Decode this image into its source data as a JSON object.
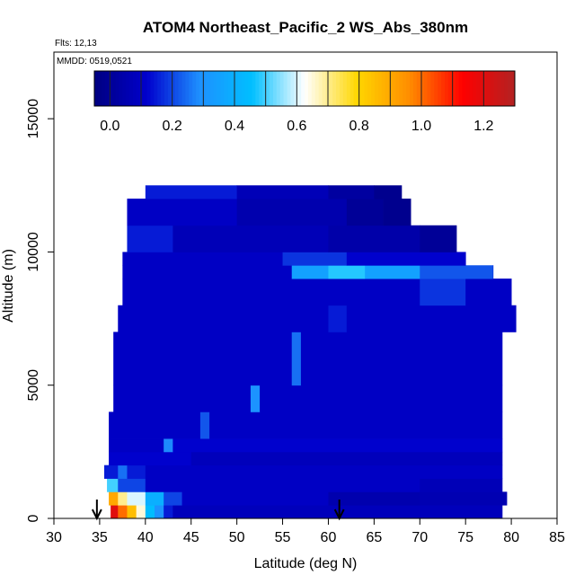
{
  "chart_data": {
    "type": "heatmap",
    "title": "ATOM4 Northeast_Pacific_2 WS_Abs_380nm",
    "notes": [
      "Flts: 12,13",
      "MMDD: 0519,0521"
    ],
    "xlabel": "Latitude (deg N)",
    "ylabel": "Altitude (m)",
    "xlim": [
      30,
      85
    ],
    "ylim": [
      0,
      17500
    ],
    "x_ticks": [
      30,
      35,
      40,
      45,
      50,
      55,
      60,
      65,
      70,
      75,
      80,
      85
    ],
    "y_ticks": [
      0,
      5000,
      10000,
      15000
    ],
    "colorbar": {
      "range": [
        -0.05,
        1.3
      ],
      "ticks": [
        0.0,
        0.2,
        0.4,
        0.6,
        0.8,
        1.0,
        1.2
      ],
      "tick_labels": [
        "0.0",
        "0.2",
        "0.4",
        "0.6",
        "0.8",
        "1.0",
        "1.2"
      ],
      "colors": [
        "#000080",
        "#0000cd",
        "#1e90ff",
        "#00bfff",
        "#ffffff",
        "#ffd700",
        "#ff8c00",
        "#ff0000",
        "#b22222"
      ]
    },
    "arrows_at_latitude": [
      34.7,
      61.2
    ],
    "layers": [
      {
        "alt": [
          0,
          500
        ],
        "lat": [
          36.2,
          79.0
        ],
        "segments": [
          [
            36.2,
            1.2
          ],
          [
            37.0,
            1.0
          ],
          [
            38.0,
            0.85
          ],
          [
            39.0,
            0.65
          ],
          [
            40.0,
            0.45
          ],
          [
            41.0,
            0.3
          ],
          [
            42.0,
            0.15
          ],
          [
            43.0,
            0.08
          ]
        ]
      },
      {
        "alt": [
          500,
          1000
        ],
        "lat": [
          36.0,
          79.5
        ],
        "segments": [
          [
            36.0,
            0.9
          ],
          [
            37.0,
            0.7
          ],
          [
            38.0,
            0.6
          ],
          [
            40.0,
            0.4
          ],
          [
            42.0,
            0.2
          ],
          [
            44.0,
            0.1
          ],
          [
            60.0,
            0.05
          ],
          [
            70.0,
            0.06
          ]
        ]
      },
      {
        "alt": [
          1000,
          1500
        ],
        "lat": [
          35.8,
          79.0
        ],
        "segments": [
          [
            35.8,
            0.5
          ],
          [
            37.0,
            0.2
          ],
          [
            40.0,
            0.1
          ],
          [
            70.0,
            0.07
          ]
        ]
      },
      {
        "alt": [
          1500,
          2000
        ],
        "lat": [
          35.5,
          79.0
        ],
        "segments": [
          [
            35.5,
            0.15
          ],
          [
            37.0,
            0.25
          ],
          [
            38.0,
            0.15
          ],
          [
            40.0,
            0.1
          ]
        ]
      },
      {
        "alt": [
          2000,
          2500
        ],
        "lat": [
          36.0,
          79.0
        ],
        "segments": [
          [
            36.0,
            0.12
          ],
          [
            45.0,
            0.08
          ]
        ]
      },
      {
        "alt": [
          2500,
          3000
        ],
        "lat": [
          36.0,
          79.0
        ],
        "segments": [
          [
            36.0,
            0.1
          ],
          [
            42.0,
            0.28
          ],
          [
            43.0,
            0.12
          ]
        ]
      },
      {
        "alt": [
          3000,
          4000
        ],
        "lat": [
          36.0,
          79.0
        ],
        "segments": [
          [
            36.0,
            0.1
          ],
          [
            46.0,
            0.22
          ],
          [
            47.0,
            0.1
          ]
        ]
      },
      {
        "alt": [
          4000,
          5000
        ],
        "lat": [
          36.5,
          79.0
        ],
        "segments": [
          [
            36.5,
            0.1
          ],
          [
            51.5,
            0.3
          ],
          [
            52.5,
            0.1
          ]
        ]
      },
      {
        "alt": [
          5000,
          7000
        ],
        "lat": [
          36.5,
          79.0
        ],
        "segments": [
          [
            36.5,
            0.1
          ],
          [
            56.0,
            0.25
          ],
          [
            57.0,
            0.1
          ]
        ]
      },
      {
        "alt": [
          7000,
          8000
        ],
        "lat": [
          37.0,
          80.5
        ],
        "segments": [
          [
            37.0,
            0.1
          ],
          [
            60.0,
            0.15
          ],
          [
            62.0,
            0.1
          ]
        ]
      },
      {
        "alt": [
          8000,
          9000
        ],
        "lat": [
          37.5,
          80.0
        ],
        "segments": [
          [
            37.5,
            0.1
          ],
          [
            70.0,
            0.18
          ],
          [
            75.0,
            0.1
          ]
        ]
      },
      {
        "alt": [
          9000,
          9500
        ],
        "lat": [
          37.5,
          78.0
        ],
        "segments": [
          [
            37.5,
            0.1
          ],
          [
            56.0,
            0.35
          ],
          [
            60.0,
            0.48
          ],
          [
            64.0,
            0.35
          ],
          [
            70.0,
            0.22
          ],
          [
            78.0,
            0.15
          ]
        ]
      },
      {
        "alt": [
          9500,
          10000
        ],
        "lat": [
          37.5,
          75.0
        ],
        "segments": [
          [
            37.5,
            0.1
          ],
          [
            55.0,
            0.18
          ],
          [
            62.0,
            0.12
          ]
        ]
      },
      {
        "alt": [
          10000,
          11000
        ],
        "lat": [
          38.0,
          74.0
        ],
        "segments": [
          [
            38.0,
            0.15
          ],
          [
            43.0,
            0.07
          ],
          [
            60.0,
            0.04
          ],
          [
            70.0,
            0.0
          ]
        ]
      },
      {
        "alt": [
          11000,
          12000
        ],
        "lat": [
          38.0,
          69.0
        ],
        "segments": [
          [
            38.0,
            0.1
          ],
          [
            50.0,
            0.05
          ],
          [
            62.0,
            0.0
          ],
          [
            66.0,
            -0.02
          ]
        ]
      },
      {
        "alt": [
          12000,
          12500
        ],
        "lat": [
          40.0,
          68.0
        ],
        "segments": [
          [
            40.0,
            0.15
          ],
          [
            50.0,
            0.07
          ],
          [
            60.0,
            0.02
          ],
          [
            65.0,
            -0.02
          ]
        ]
      }
    ]
  }
}
